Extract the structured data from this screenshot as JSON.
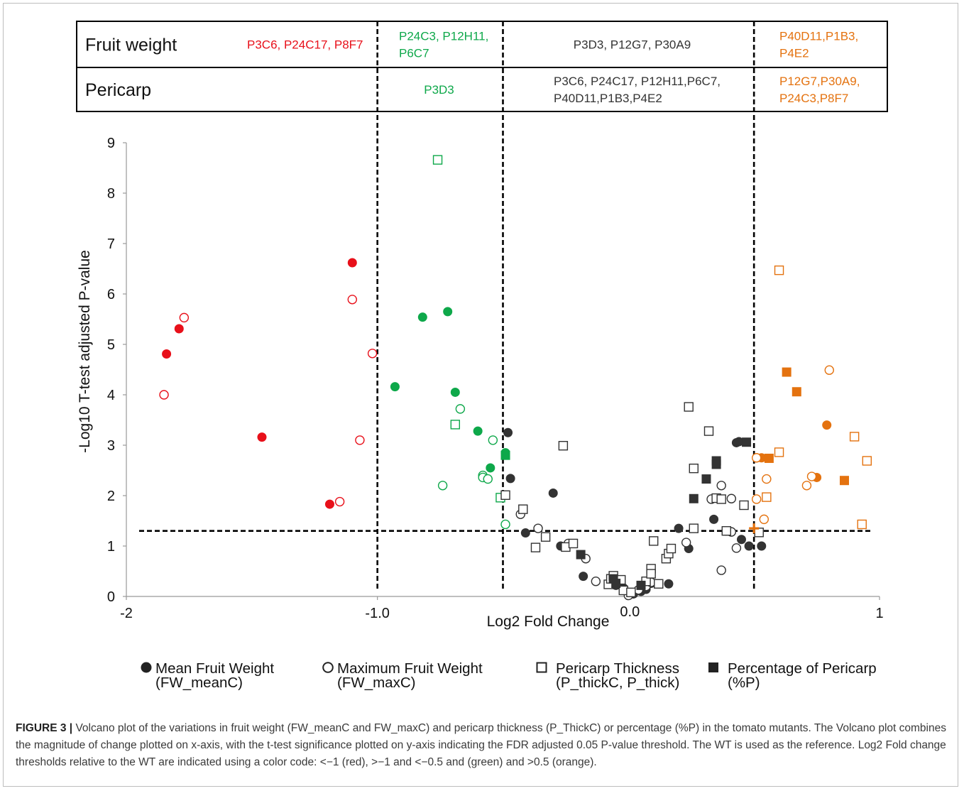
{
  "chart_data": {
    "type": "scatter",
    "xlabel": "Log2 Fold Change",
    "ylabel": "-Log10 T-test adjusted P-value",
    "xlim": [
      -2,
      1
    ],
    "ylim": [
      0,
      9
    ],
    "x_ticks": [
      {
        "value": -2,
        "label": "-2"
      },
      {
        "value": -1,
        "label": "-1.0"
      },
      {
        "value": 0,
        "label": "0.0"
      },
      {
        "value": 1,
        "label": "1"
      }
    ],
    "y_ticks": [
      0,
      1,
      2,
      3,
      4,
      5,
      6,
      7,
      8,
      9
    ],
    "thresholds": {
      "x": [
        -1,
        -0.5,
        0.5
      ],
      "y": 1.3
    },
    "colors": {
      "red": "#e8101a",
      "green": "#0ea84a",
      "orange": "#e4720f",
      "black": "#333333"
    },
    "summary_table": {
      "rows": [
        {
          "label": "Fruit weight",
          "cells": [
            {
              "text": "P3C6, P24C17, P8F7",
              "color": "red"
            },
            {
              "text": "P24C3, P12H11, P6C7",
              "color": "green"
            },
            {
              "text": "P3D3, P12G7, P30A9",
              "color": "black"
            },
            {
              "text": "P40D11,P1B3, P4E2",
              "color": "orange"
            }
          ]
        },
        {
          "label": "Pericarp",
          "cells": [
            {
              "text": "",
              "color": "red"
            },
            {
              "text": "P3D3",
              "color": "green"
            },
            {
              "text": "P3C6, P24C17, P12H11,P6C7, P40D11,P1B3,P4E2",
              "color": "black"
            },
            {
              "text": "P12G7,P30A9, P24C3,P8F7",
              "color": "orange"
            }
          ]
        }
      ]
    },
    "legend": [
      {
        "marker": "filled-circle",
        "line1": "Mean Fruit Weight",
        "line2": "(FW_meanC)"
      },
      {
        "marker": "open-circle",
        "line1": "Maximum Fruit Weight",
        "line2": "(FW_maxC)"
      },
      {
        "marker": "open-square",
        "line1": "Pericarp Thickness",
        "line2": "(P_thickC, P_thick)"
      },
      {
        "marker": "filled-square",
        "line1": "Percentage of Pericarp",
        "line2": "(%P)"
      }
    ],
    "series": [
      {
        "marker": "filled-circle",
        "color": "red",
        "points": [
          [
            -1.1,
            6.62
          ],
          [
            -1.79,
            5.31
          ],
          [
            -1.84,
            4.81
          ],
          [
            -1.46,
            3.16
          ],
          [
            -1.19,
            1.83
          ]
        ]
      },
      {
        "marker": "open-circle",
        "color": "red",
        "points": [
          [
            -1.1,
            5.89
          ],
          [
            -1.77,
            5.53
          ],
          [
            -1.02,
            4.82
          ],
          [
            -1.85,
            4.0
          ],
          [
            -1.07,
            3.1
          ],
          [
            -1.15,
            1.88
          ]
        ]
      },
      {
        "marker": "filled-circle",
        "color": "green",
        "points": [
          [
            -0.82,
            5.54
          ],
          [
            -0.72,
            5.65
          ],
          [
            -0.93,
            4.16
          ],
          [
            -0.69,
            4.05
          ],
          [
            -0.6,
            3.28
          ],
          [
            -0.55,
            2.55
          ],
          [
            -0.49,
            2.85
          ]
        ]
      },
      {
        "marker": "open-circle",
        "color": "green",
        "points": [
          [
            -0.67,
            3.72
          ],
          [
            -0.54,
            3.1
          ],
          [
            -0.58,
            2.4
          ],
          [
            -0.58,
            2.36
          ],
          [
            -0.56,
            2.33
          ],
          [
            -0.74,
            2.2
          ],
          [
            -0.49,
            1.43
          ]
        ]
      },
      {
        "marker": "open-square",
        "color": "green",
        "points": [
          [
            -0.76,
            8.66
          ],
          [
            -0.69,
            3.41
          ],
          [
            -0.51,
            1.96
          ]
        ]
      },
      {
        "marker": "filled-square",
        "color": "green",
        "points": [
          [
            -0.49,
            2.8
          ]
        ]
      },
      {
        "marker": "filled-circle",
        "color": "black",
        "points": [
          [
            -0.48,
            3.25
          ],
          [
            -0.47,
            2.34
          ],
          [
            -0.3,
            2.05
          ],
          [
            -0.41,
            1.26
          ],
          [
            -0.27,
            1.0
          ],
          [
            -0.18,
            0.4
          ],
          [
            -0.06,
            0.33
          ],
          [
            -0.05,
            0.22
          ],
          [
            -0.02,
            0.17
          ],
          [
            0.02,
            0.05
          ],
          [
            0.05,
            0.1
          ],
          [
            0.07,
            0.14
          ],
          [
            0.09,
            0.26
          ],
          [
            0.16,
            0.25
          ],
          [
            0.2,
            1.35
          ],
          [
            0.24,
            0.95
          ],
          [
            0.34,
            1.53
          ],
          [
            0.43,
            3.05
          ],
          [
            0.44,
            3.07
          ],
          [
            0.45,
            1.13
          ],
          [
            0.48,
            1.0
          ],
          [
            0.53,
            1.0
          ]
        ]
      },
      {
        "marker": "open-circle",
        "color": "black",
        "points": [
          [
            -0.43,
            1.63
          ],
          [
            -0.36,
            1.35
          ],
          [
            -0.24,
            1.05
          ],
          [
            -0.17,
            0.75
          ],
          [
            -0.13,
            0.3
          ],
          [
            0.0,
            0.02
          ],
          [
            0.04,
            0.13
          ],
          [
            0.07,
            0.2
          ],
          [
            0.09,
            0.28
          ],
          [
            0.23,
            1.07
          ],
          [
            0.33,
            1.93
          ],
          [
            0.37,
            2.2
          ],
          [
            0.39,
            1.3
          ],
          [
            0.41,
            1.28
          ],
          [
            0.41,
            1.94
          ],
          [
            0.43,
            0.96
          ],
          [
            0.37,
            0.52
          ]
        ]
      },
      {
        "marker": "open-square",
        "color": "black",
        "points": [
          [
            -0.49,
            2.01
          ],
          [
            -0.42,
            1.73
          ],
          [
            -0.37,
            0.97
          ],
          [
            -0.33,
            1.18
          ],
          [
            -0.25,
            0.98
          ],
          [
            -0.22,
            1.05
          ],
          [
            -0.26,
            2.99
          ],
          [
            -0.08,
            0.24
          ],
          [
            -0.07,
            0.35
          ],
          [
            -0.06,
            0.41
          ],
          [
            -0.03,
            0.33
          ],
          [
            -0.02,
            0.12
          ],
          [
            0.01,
            0.08
          ],
          [
            0.07,
            0.3
          ],
          [
            0.09,
            0.55
          ],
          [
            0.09,
            0.45
          ],
          [
            0.1,
            1.1
          ],
          [
            0.12,
            0.25
          ],
          [
            0.15,
            0.75
          ],
          [
            0.16,
            0.85
          ],
          [
            0.17,
            0.95
          ],
          [
            0.24,
            3.76
          ],
          [
            0.26,
            2.54
          ],
          [
            0.26,
            1.35
          ],
          [
            0.32,
            3.28
          ],
          [
            0.35,
            1.95
          ],
          [
            0.37,
            1.93
          ],
          [
            0.39,
            1.3
          ],
          [
            0.46,
            1.81
          ],
          [
            0.52,
            1.27
          ]
        ]
      },
      {
        "marker": "filled-square",
        "color": "black",
        "points": [
          [
            -0.19,
            0.83
          ],
          [
            -0.06,
            0.35
          ],
          [
            -0.05,
            0.26
          ],
          [
            0.05,
            0.22
          ],
          [
            0.26,
            1.94
          ],
          [
            0.31,
            2.33
          ],
          [
            0.35,
            2.69
          ],
          [
            0.35,
            2.62
          ],
          [
            0.47,
            3.06
          ]
        ]
      },
      {
        "marker": "filled-circle",
        "color": "orange",
        "points": [
          [
            0.53,
            2.75
          ],
          [
            0.79,
            3.4
          ],
          [
            0.75,
            2.36
          ]
        ]
      },
      {
        "marker": "open-circle",
        "color": "orange",
        "points": [
          [
            0.8,
            4.49
          ],
          [
            0.73,
            2.38
          ],
          [
            0.71,
            2.2
          ],
          [
            0.55,
            2.33
          ],
          [
            0.51,
            2.75
          ],
          [
            0.51,
            1.93
          ],
          [
            0.54,
            1.53
          ]
        ]
      },
      {
        "marker": "open-square",
        "color": "orange",
        "points": [
          [
            0.6,
            6.47
          ],
          [
            0.6,
            2.86
          ],
          [
            0.55,
            1.97
          ],
          [
            0.9,
            3.17
          ],
          [
            0.95,
            2.69
          ],
          [
            0.93,
            1.43
          ]
        ]
      },
      {
        "marker": "filled-square",
        "color": "orange",
        "points": [
          [
            0.63,
            4.45
          ],
          [
            0.67,
            4.06
          ],
          [
            0.56,
            2.74
          ],
          [
            0.86,
            2.3
          ]
        ]
      },
      {
        "marker": "plus",
        "color": "orange",
        "points": [
          [
            0.5,
            1.35
          ]
        ]
      }
    ]
  },
  "caption": {
    "label": "FIGURE 3",
    "separator": "|",
    "text": "Volcano plot of the variations in fruit weight (FW_meanC and FW_maxC) and pericarp thickness (P_ThickC) or percentage (%P) in the tomato mutants. The Volcano plot combines the magnitude of change plotted on x-axis, with the t-test significance plotted on y-axis indicating the FDR adjusted 0.05 P-value threshold. The WT is used as the reference. Log2 Fold change thresholds relative to the WT are indicated using a color code: <−1 (red), >−1 and <−0.5 and (green) and >0.5 (orange)."
  }
}
